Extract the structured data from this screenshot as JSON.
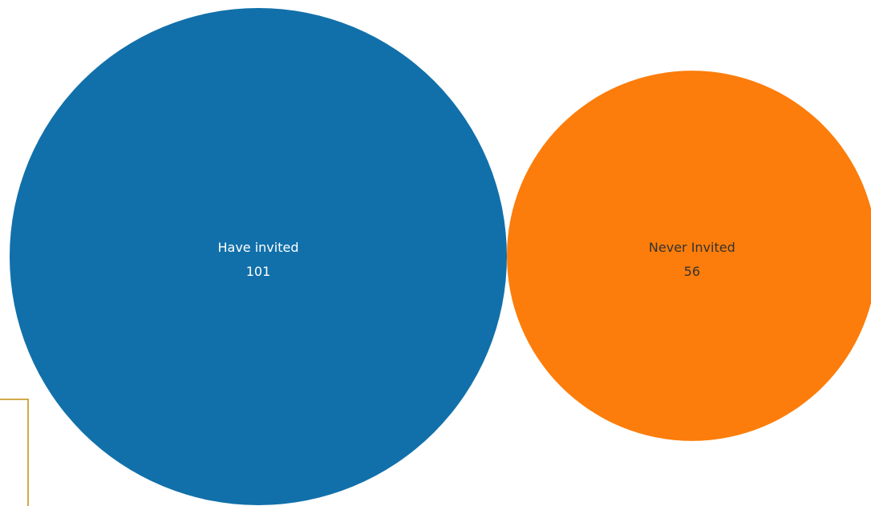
{
  "chart_data": {
    "type": "bubble",
    "categories": [
      "Have invited",
      "Never Invited"
    ],
    "values": [
      101,
      56
    ],
    "colors": [
      "#1170AA",
      "#FC7D0B"
    ],
    "label_colors": [
      "#ffffff",
      "#333333"
    ],
    "title": "",
    "legend": "none"
  }
}
